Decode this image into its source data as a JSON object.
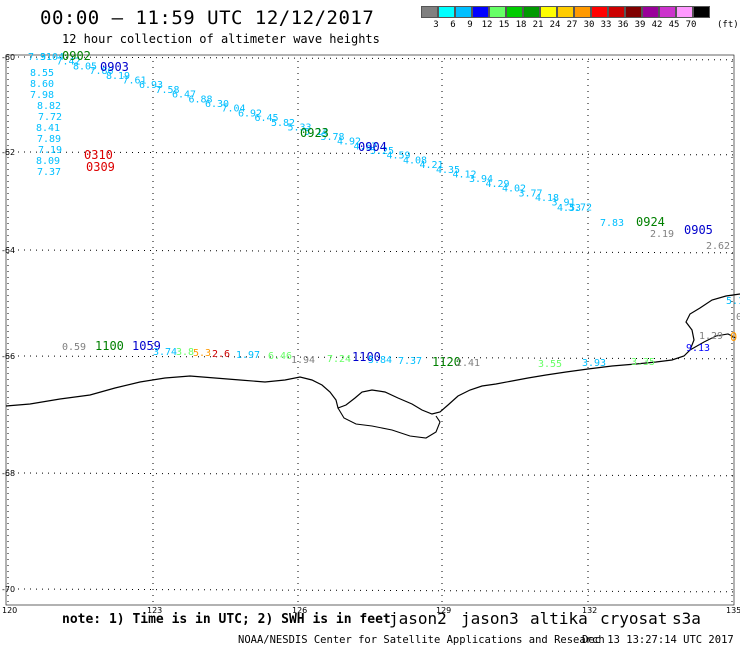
{
  "header": {
    "title": "00:00 – 11:59 UTC 12/12/2017",
    "subtitle": "12 hour collection of altimeter wave heights"
  },
  "legend": {
    "colors": [
      "#808080",
      "#00ffff",
      "#00bfff",
      "#0000ff",
      "#66ff66",
      "#00cc00",
      "#009900",
      "#ffff00",
      "#ffcc00",
      "#ff9900",
      "#ff0000",
      "#cc0000",
      "#800000",
      "#990099",
      "#cc33cc",
      "#ff99ff",
      "#000000"
    ],
    "labels": [
      "3",
      "6",
      "9",
      "12",
      "15",
      "18",
      "21",
      "24",
      "27",
      "30",
      "33",
      "36",
      "39",
      "42",
      "45",
      "70"
    ],
    "unit": "(ft)"
  },
  "map": {
    "lat_labels": [
      "-60",
      "-62",
      "-64",
      "-66",
      "-68",
      "-70"
    ],
    "lon_labels": [
      "120",
      "123",
      "126",
      "129",
      "132",
      "135"
    ],
    "coastline_color": "#000000",
    "grid_color": "#000000"
  },
  "passes": [
    {
      "id": "0902",
      "label": "0902",
      "color": "#008000"
    },
    {
      "id": "0903",
      "label": "0903",
      "color": "#0000cc"
    },
    {
      "id": "0310",
      "label": "0310",
      "color": "#dd0000"
    },
    {
      "id": "0309",
      "label": "0309",
      "color": "#dd0000"
    },
    {
      "id": "0923",
      "label": "0923",
      "color": "#008000"
    },
    {
      "id": "0904",
      "label": "0904",
      "color": "#0000cc"
    },
    {
      "id": "0924",
      "label": "0924",
      "color": "#008000"
    },
    {
      "id": "0905",
      "label": "0905",
      "color": "#0000cc"
    },
    {
      "id": "1100",
      "label": "1100",
      "color": "#008000"
    },
    {
      "id": "1059",
      "label": "1059",
      "color": "#0000cc"
    },
    {
      "id": "1120",
      "label": "1120",
      "color": "#008000"
    },
    {
      "id": "1100b",
      "label": "1100",
      "color": "#0000cc"
    }
  ],
  "wave_heights": [
    {
      "v": "7.31",
      "c": "#00bfff"
    },
    {
      "v": "8.55",
      "c": "#00bfff"
    },
    {
      "v": "8.60",
      "c": "#00bfff"
    },
    {
      "v": "7.98",
      "c": "#00bfff"
    },
    {
      "v": "8.82",
      "c": "#00bfff"
    },
    {
      "v": "7.72",
      "c": "#00bfff"
    },
    {
      "v": "8.41",
      "c": "#00bfff"
    },
    {
      "v": "7.89",
      "c": "#00bfff"
    },
    {
      "v": "7.19",
      "c": "#00bfff"
    },
    {
      "v": "8.09",
      "c": "#00bfff"
    },
    {
      "v": "7.37",
      "c": "#00bfff"
    },
    {
      "v": "7.83",
      "c": "#00bfff"
    },
    {
      "v": "2.19",
      "c": "#808080"
    },
    {
      "v": "2.62",
      "c": "#808080"
    },
    {
      "v": "0.59",
      "c": "#808080"
    },
    {
      "v": "1.29",
      "c": "#808080"
    },
    {
      "v": "9.13",
      "c": "#0000ff"
    },
    {
      "v": "4.53",
      "c": "#00bfff"
    },
    {
      "v": "1.94",
      "c": "#808080"
    },
    {
      "v": "3.55",
      "c": "#66ff66"
    }
  ],
  "footer": {
    "note": "note: 1) Time is in UTC; 2) SWH is in feet",
    "satellites": [
      {
        "name": "jason2",
        "color": "#0000cc"
      },
      {
        "name": "jason3",
        "color": "#008000"
      },
      {
        "name": "altika",
        "color": "#ff9900"
      },
      {
        "name": "cryosat",
        "color": "#cc0000"
      },
      {
        "name": "s3a",
        "color": "#990000"
      }
    ],
    "credit": "NOAA/NESDIS Center for Satellite Applications and Research",
    "timestamp": "Dec 13 13:27:14 UTC 2017"
  }
}
